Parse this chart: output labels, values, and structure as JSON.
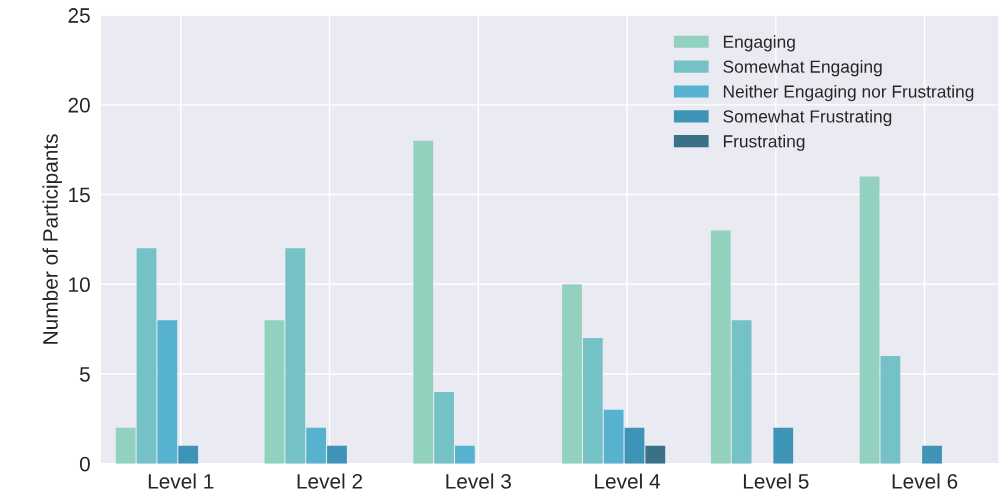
{
  "chart_data": {
    "type": "bar",
    "ylabel": "Number of Participants",
    "categories": [
      "Level 1",
      "Level 2",
      "Level 3",
      "Level 4",
      "Level 5",
      "Level 6"
    ],
    "series": [
      {
        "name": "Engaging",
        "color": "#93d1bf",
        "values": [
          2,
          8,
          18,
          10,
          13,
          16
        ]
      },
      {
        "name": "Somewhat Engaging",
        "color": "#74c1c6",
        "values": [
          12,
          12,
          4,
          7,
          8,
          6
        ]
      },
      {
        "name": "Neither Engaging nor Frustrating",
        "color": "#56b2cf",
        "values": [
          8,
          2,
          1,
          3,
          0,
          0
        ]
      },
      {
        "name": "Somewhat Frustrating",
        "color": "#3e94b7",
        "values": [
          1,
          1,
          0,
          2,
          2,
          1
        ]
      },
      {
        "name": "Frustrating",
        "color": "#3a7189",
        "values": [
          0,
          0,
          0,
          1,
          0,
          0
        ]
      }
    ],
    "ylim": [
      0,
      25
    ],
    "yticks": [
      0,
      5,
      10,
      15,
      20,
      25
    ],
    "grid": true,
    "legend": "top right"
  }
}
